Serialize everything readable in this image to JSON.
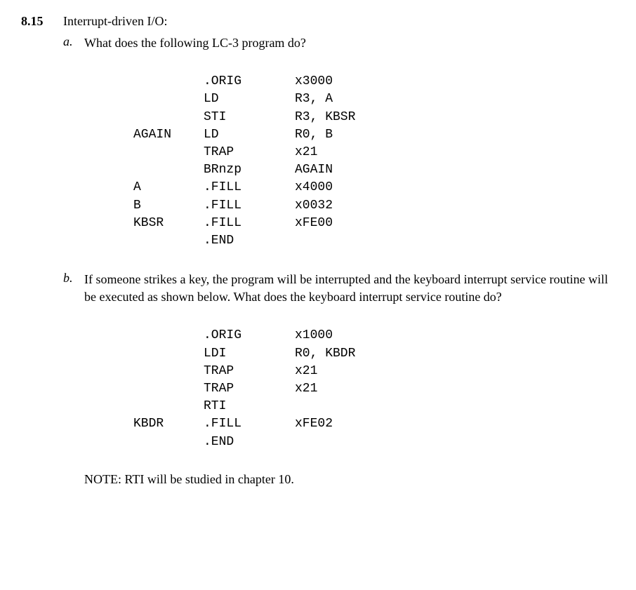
{
  "problem": {
    "number": "8.15",
    "title": "Interrupt-driven I/O:"
  },
  "partA": {
    "label": "a.",
    "question": "What does the following LC-3 program do?",
    "code": [
      {
        "label": "",
        "op": ".ORIG",
        "arg": "x3000"
      },
      {
        "label": "",
        "op": "LD",
        "arg": "R3, A"
      },
      {
        "label": "",
        "op": "STI",
        "arg": "R3, KBSR"
      },
      {
        "label": "AGAIN",
        "op": "LD",
        "arg": "R0, B"
      },
      {
        "label": "",
        "op": "TRAP",
        "arg": "x21"
      },
      {
        "label": "",
        "op": "BRnzp",
        "arg": "AGAIN"
      },
      {
        "label": "A",
        "op": ".FILL",
        "arg": "x4000"
      },
      {
        "label": "B",
        "op": ".FILL",
        "arg": "x0032"
      },
      {
        "label": "KBSR",
        "op": ".FILL",
        "arg": "xFE00"
      },
      {
        "label": "",
        "op": ".END",
        "arg": ""
      }
    ]
  },
  "partB": {
    "label": "b.",
    "question": "If someone strikes a key, the program will be interrupted and the keyboard interrupt service routine will be executed as shown below. What does the keyboard interrupt service routine do?",
    "code": [
      {
        "label": "",
        "op": ".ORIG",
        "arg": "x1000"
      },
      {
        "label": "",
        "op": "LDI",
        "arg": "R0, KBDR"
      },
      {
        "label": "",
        "op": "TRAP",
        "arg": "x21"
      },
      {
        "label": "",
        "op": "TRAP",
        "arg": "x21"
      },
      {
        "label": "",
        "op": "RTI",
        "arg": ""
      },
      {
        "label": "KBDR",
        "op": ".FILL",
        "arg": "xFE02"
      },
      {
        "label": "",
        "op": ".END",
        "arg": ""
      }
    ]
  },
  "note": "NOTE: RTI will be studied in chapter 10."
}
